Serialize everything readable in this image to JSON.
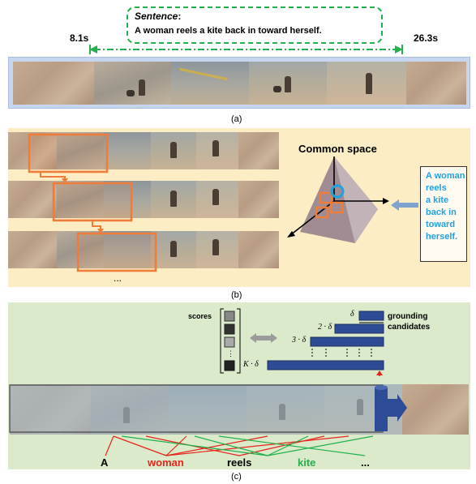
{
  "panel_a": {
    "sentence_title": "Sentence",
    "sentence_colon": ":",
    "sentence_text": "A woman reels a kite back in toward herself.",
    "start_time": "8.1s",
    "end_time": "26.3s",
    "caption": "(a)"
  },
  "panel_b": {
    "common_space": "Common space",
    "query_lines": [
      "A woman",
      "reels",
      "a kite",
      "back in",
      "toward",
      "herself."
    ],
    "ellipsis": "...",
    "caption": "(b)"
  },
  "panel_c": {
    "scores_label": "scores",
    "grounding_label_1": "grounding",
    "grounding_label_2": "candidates",
    "delta_1": "δ",
    "delta_2": "2 · δ",
    "delta_3": "3 · δ",
    "delta_k": "K · δ",
    "words": [
      "A",
      "woman",
      "reels",
      "kite",
      "..."
    ],
    "caption": "(c)"
  },
  "colors": {
    "green_dash": "#22b14c",
    "orange": "#ee7d3b",
    "blue_text": "#1fa3e0",
    "navy_bar": "#2e4c96",
    "panel_b_bg": "#fdedc4",
    "panel_c_bg": "#dbeacb",
    "red_word": "#e8241b",
    "green_word": "#22b14c"
  }
}
